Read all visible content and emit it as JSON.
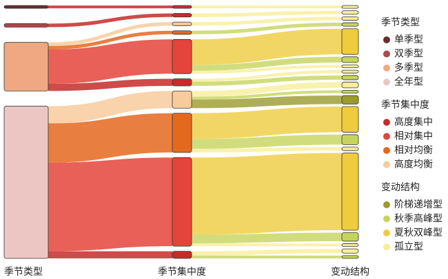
{
  "chart_data": {
    "type": "alluvial",
    "dimensions": [
      {
        "name": "季节类型",
        "categories": [
          "单季型",
          "双季型",
          "多季型",
          "全年型"
        ],
        "colors": [
          "#6e2a2a",
          "#b0474a",
          "#f0a882",
          "#ecc6c3"
        ]
      },
      {
        "name": "季节集中度",
        "categories": [
          "高度集中",
          "相对集中",
          "相对均衡",
          "高度均衡"
        ],
        "colors": [
          "#c62c2a",
          "#e4443a",
          "#e4691f",
          "#f7cb9c"
        ]
      },
      {
        "name": "变动结构",
        "categories": [
          "阶梯递增型",
          "秋季高峰型",
          "夏秋双峰型",
          "孤立型"
        ],
        "colors": [
          "#9a9a2e",
          "#c6d45c",
          "#efcc3e",
          "#f7ed9a"
        ]
      }
    ],
    "flows": [
      {
        "nodes": [
          0,
          0,
          3
        ],
        "value": 4
      },
      {
        "nodes": [
          1,
          0,
          3
        ],
        "value": 5
      },
      {
        "nodes": [
          2,
          3,
          3
        ],
        "value": 5
      },
      {
        "nodes": [
          2,
          2,
          1
        ],
        "value": 5
      },
      {
        "nodes": [
          2,
          1,
          2
        ],
        "value": 36
      },
      {
        "nodes": [
          2,
          1,
          1
        ],
        "value": 8
      },
      {
        "nodes": [
          2,
          1,
          3
        ],
        "value": 4
      },
      {
        "nodes": [
          2,
          0,
          3
        ],
        "value": 4
      },
      {
        "nodes": [
          2,
          0,
          1
        ],
        "value": 6
      },
      {
        "nodes": [
          3,
          3,
          3
        ],
        "value": 8
      },
      {
        "nodes": [
          3,
          3,
          1
        ],
        "value": 4
      },
      {
        "nodes": [
          3,
          3,
          0
        ],
        "value": 12
      },
      {
        "nodes": [
          3,
          2,
          2
        ],
        "value": 36
      },
      {
        "nodes": [
          3,
          2,
          1
        ],
        "value": 14
      },
      {
        "nodes": [
          3,
          2,
          3
        ],
        "value": 5
      },
      {
        "nodes": [
          3,
          1,
          2
        ],
        "value": 108
      },
      {
        "nodes": [
          3,
          1,
          1
        ],
        "value": 12
      },
      {
        "nodes": [
          3,
          1,
          3
        ],
        "value": 4
      },
      {
        "nodes": [
          3,
          0,
          3
        ],
        "value": 6
      },
      {
        "nodes": [
          3,
          0,
          1
        ],
        "value": 4
      }
    ]
  }
}
